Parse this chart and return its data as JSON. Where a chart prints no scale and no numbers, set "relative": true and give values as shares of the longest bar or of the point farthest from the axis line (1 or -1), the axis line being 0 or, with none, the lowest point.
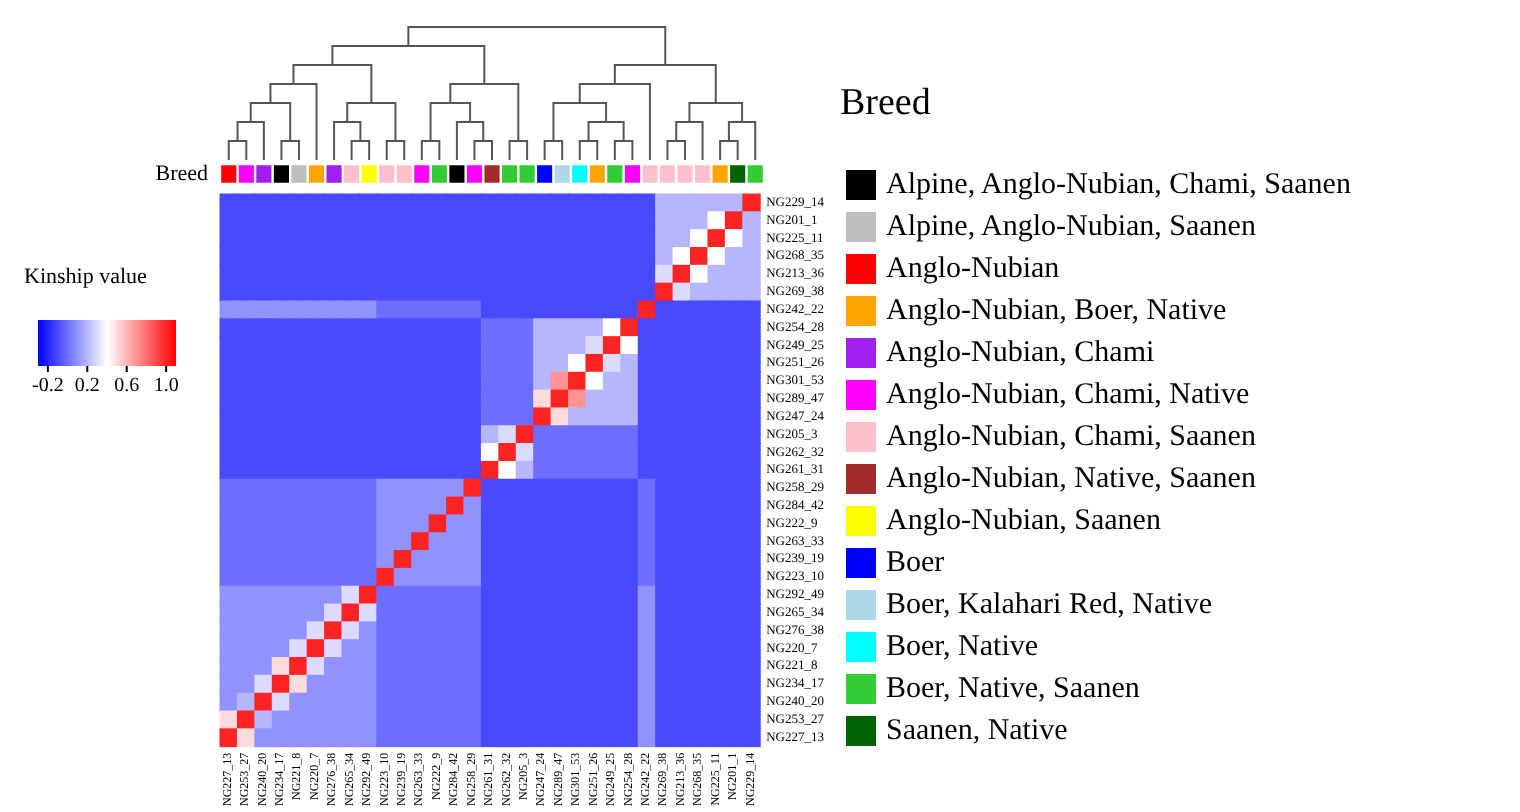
{
  "chart_data": [
    {
      "type": "bar",
      "ylabel": "Breed",
      "legend_title": "Breed",
      "legend": "right",
      "stacked": true,
      "relative": true,
      "categories": [
        null,
        null,
        null,
        null,
        null,
        null,
        null,
        null,
        null,
        null,
        null,
        null,
        null,
        null,
        null,
        null,
        null,
        null,
        null,
        null,
        null,
        null,
        null,
        null,
        null,
        null,
        null,
        null,
        null,
        null,
        null
      ],
      "series": [
        {
          "name": "Alpine, Anglo-Nubian, Chami, Saanen",
          "color": "#000000",
          "values": [
            null,
            null,
            null,
            1,
            null,
            null,
            null,
            null,
            null,
            null,
            null,
            null,
            null,
            1,
            null,
            null,
            null,
            null,
            null,
            null,
            null,
            null,
            null,
            null,
            null,
            null,
            null,
            null,
            null,
            null,
            null
          ]
        },
        {
          "name": "Alpine, Anglo-Nubian, Saanen",
          "color": "#bebebe",
          "values": [
            null,
            null,
            null,
            null,
            1,
            null,
            null,
            null,
            null,
            null,
            null,
            null,
            null,
            null,
            null,
            null,
            null,
            null,
            null,
            null,
            null,
            null,
            null,
            null,
            null,
            null,
            null,
            null,
            null,
            null,
            null
          ]
        },
        {
          "name": "Anglo-Nubian",
          "color": "#ff0000",
          "values": [
            1,
            null,
            null,
            null,
            null,
            null,
            null,
            null,
            null,
            null,
            null,
            null,
            null,
            null,
            null,
            null,
            null,
            null,
            null,
            null,
            null,
            null,
            null,
            null,
            null,
            null,
            null,
            null,
            null,
            null,
            null
          ]
        },
        {
          "name": "Anglo-Nubian, Boer, Native",
          "color": "#ffa500",
          "values": [
            null,
            null,
            null,
            null,
            null,
            1,
            null,
            null,
            null,
            null,
            null,
            null,
            null,
            null,
            null,
            null,
            null,
            null,
            null,
            null,
            null,
            1,
            null,
            null,
            null,
            null,
            null,
            null,
            1,
            null,
            null
          ]
        },
        {
          "name": "Anglo-Nubian, Chami",
          "color": "#a020f0",
          "values": [
            null,
            null,
            1,
            null,
            null,
            null,
            1,
            null,
            null,
            null,
            null,
            null,
            null,
            null,
            null,
            null,
            null,
            null,
            null,
            null,
            null,
            null,
            null,
            null,
            null,
            null,
            null,
            null,
            null,
            null,
            null
          ]
        },
        {
          "name": "Anglo-Nubian, Chami, Native",
          "color": "#ff00ff",
          "values": [
            null,
            1,
            null,
            null,
            null,
            null,
            null,
            null,
            null,
            null,
            null,
            1,
            null,
            null,
            1,
            null,
            null,
            null,
            null,
            null,
            null,
            null,
            null,
            1,
            null,
            null,
            null,
            null,
            null,
            null,
            null
          ]
        },
        {
          "name": "Anglo-Nubian, Chami, Saanen",
          "color": "#ffc0cb",
          "values": [
            null,
            null,
            null,
            null,
            null,
            null,
            null,
            1,
            null,
            1,
            1,
            null,
            null,
            null,
            null,
            null,
            null,
            null,
            null,
            null,
            null,
            null,
            null,
            null,
            1,
            1,
            1,
            1,
            null,
            null,
            null
          ]
        },
        {
          "name": "Anglo-Nubian, Native, Saanen",
          "color": "#a52a2a",
          "values": [
            null,
            null,
            null,
            null,
            null,
            null,
            null,
            null,
            null,
            null,
            null,
            null,
            null,
            null,
            null,
            1,
            null,
            null,
            null,
            null,
            null,
            null,
            null,
            null,
            null,
            null,
            null,
            null,
            null,
            null,
            null
          ]
        },
        {
          "name": "Anglo-Nubian, Saanen",
          "color": "#ffff00",
          "values": [
            null,
            null,
            null,
            null,
            null,
            null,
            null,
            null,
            1,
            null,
            null,
            null,
            null,
            null,
            null,
            null,
            null,
            null,
            null,
            null,
            null,
            null,
            null,
            null,
            null,
            null,
            null,
            null,
            null,
            null,
            null
          ]
        },
        {
          "name": "Boer",
          "color": "#0000ff",
          "values": [
            null,
            null,
            null,
            null,
            null,
            null,
            null,
            null,
            null,
            null,
            null,
            null,
            null,
            null,
            null,
            null,
            null,
            null,
            1,
            null,
            null,
            null,
            null,
            null,
            null,
            null,
            null,
            null,
            null,
            null,
            null
          ]
        },
        {
          "name": "Boer, Kalahari Red, Native",
          "color": "#add8e6",
          "values": [
            null,
            null,
            null,
            null,
            null,
            null,
            null,
            null,
            null,
            null,
            null,
            null,
            null,
            null,
            null,
            null,
            null,
            null,
            null,
            1,
            null,
            null,
            null,
            null,
            null,
            null,
            null,
            null,
            null,
            null,
            null
          ]
        },
        {
          "name": "Boer, Native",
          "color": "#00ffff",
          "values": [
            null,
            null,
            null,
            null,
            null,
            null,
            null,
            null,
            null,
            null,
            null,
            null,
            null,
            null,
            null,
            null,
            null,
            null,
            null,
            null,
            1,
            null,
            null,
            null,
            null,
            null,
            null,
            null,
            null,
            null,
            null
          ]
        },
        {
          "name": "Boer, Native, Saanen",
          "color": "#32cd32",
          "values": [
            null,
            null,
            null,
            null,
            null,
            null,
            null,
            null,
            null,
            null,
            null,
            null,
            1,
            null,
            null,
            null,
            1,
            1,
            null,
            null,
            null,
            null,
            1,
            null,
            null,
            null,
            null,
            null,
            null,
            null,
            1
          ]
        },
        {
          "name": "Saanen, Native",
          "color": "#006400",
          "values": [
            null,
            null,
            null,
            null,
            null,
            null,
            null,
            null,
            null,
            null,
            null,
            null,
            null,
            null,
            null,
            null,
            null,
            null,
            null,
            null,
            null,
            null,
            null,
            null,
            null,
            null,
            null,
            null,
            null,
            1,
            null
          ]
        }
      ]
    },
    {
      "type": "heatmap",
      "clabel": "Kinship value",
      "clim": [
        -0.3,
        1.1
      ],
      "cticks": [
        -0.2,
        0.2,
        0.6,
        {
          "value": 1,
          "label": "1.0"
        }
      ],
      "colors": [
        "#0000ff",
        "#ffffff",
        "#ff0000"
      ],
      "categories": [
        "NG227_13",
        "NG253_27",
        "NG240_20",
        "NG234_17",
        "NG221_8",
        "NG220_7",
        "NG276_38",
        "NG265_34",
        "NG292_49",
        "NG223_10",
        "NG239_19",
        "NG263_33",
        "NG222_9",
        "NG284_42",
        "NG258_29",
        "NG261_31",
        "NG262_32",
        "NG205_3",
        "NG247_24",
        "NG289_47",
        "NG301_53",
        "NG251_26",
        "NG249_25",
        "NG254_28",
        "NG242_22",
        "NG269_38",
        "NG213_36",
        "NG268_35",
        "NG225_11",
        "NG201_1",
        "NG229_14"
      ],
      "y_categories": [
        "NG229_14",
        "NG201_1",
        "NG225_11",
        "NG268_35",
        "NG213_36",
        "NG269_38",
        "NG242_22",
        "NG254_28",
        "NG249_25",
        "NG251_26",
        "NG301_53",
        "NG289_47",
        "NG247_24",
        "NG205_3",
        "NG262_32",
        "NG261_31",
        "NG258_29",
        "NG284_42",
        "NG222_9",
        "NG263_33",
        "NG239_19",
        "NG223_10",
        "NG292_49",
        "NG265_34",
        "NG276_38",
        "NG220_7",
        "NG221_8",
        "NG234_17",
        "NG240_20",
        "NG253_27",
        "NG227_13"
      ],
      "cells": [
        [
          -0.1,
          -0.1,
          -0.1,
          -0.1,
          -0.1,
          -0.1,
          -0.1,
          -0.1,
          -0.1,
          -0.1,
          -0.1,
          -0.1,
          -0.1,
          -0.1,
          -0.1,
          -0.1,
          -0.1,
          -0.1,
          -0.1,
          -0.1,
          -0.1,
          -0.1,
          -0.1,
          -0.1,
          -0.1,
          0.2,
          0.2,
          0.2,
          0.2,
          0.2,
          1.0
        ],
        [
          -0.1,
          -0.1,
          -0.1,
          -0.1,
          -0.1,
          -0.1,
          -0.1,
          -0.1,
          -0.1,
          -0.1,
          -0.1,
          -0.1,
          -0.1,
          -0.1,
          -0.1,
          -0.1,
          -0.1,
          -0.1,
          -0.1,
          -0.1,
          -0.1,
          -0.1,
          -0.1,
          -0.1,
          -0.1,
          0.2,
          0.2,
          0.2,
          0.4,
          1.0,
          0.2
        ],
        [
          -0.1,
          -0.1,
          -0.1,
          -0.1,
          -0.1,
          -0.1,
          -0.1,
          -0.1,
          -0.1,
          -0.1,
          -0.1,
          -0.1,
          -0.1,
          -0.1,
          -0.1,
          -0.1,
          -0.1,
          -0.1,
          -0.1,
          -0.1,
          -0.1,
          -0.1,
          -0.1,
          -0.1,
          -0.1,
          0.2,
          0.2,
          0.4,
          1.0,
          0.4,
          0.2
        ],
        [
          -0.1,
          -0.1,
          -0.1,
          -0.1,
          -0.1,
          -0.1,
          -0.1,
          -0.1,
          -0.1,
          -0.1,
          -0.1,
          -0.1,
          -0.1,
          -0.1,
          -0.1,
          -0.1,
          -0.1,
          -0.1,
          -0.1,
          -0.1,
          -0.1,
          -0.1,
          -0.1,
          -0.1,
          -0.1,
          0.2,
          0.4,
          1.0,
          0.4,
          0.2,
          0.2
        ],
        [
          -0.1,
          -0.1,
          -0.1,
          -0.1,
          -0.1,
          -0.1,
          -0.1,
          -0.1,
          -0.1,
          -0.1,
          -0.1,
          -0.1,
          -0.1,
          -0.1,
          -0.1,
          -0.1,
          -0.1,
          -0.1,
          -0.1,
          -0.1,
          -0.1,
          -0.1,
          -0.1,
          -0.1,
          -0.1,
          0.3,
          1.0,
          0.4,
          0.2,
          0.2,
          0.2
        ],
        [
          -0.1,
          -0.1,
          -0.1,
          -0.1,
          -0.1,
          -0.1,
          -0.1,
          -0.1,
          -0.1,
          -0.1,
          -0.1,
          -0.1,
          -0.1,
          -0.1,
          -0.1,
          -0.1,
          -0.1,
          -0.1,
          -0.1,
          -0.1,
          -0.1,
          -0.1,
          -0.1,
          -0.1,
          -0.1,
          1.0,
          0.3,
          0.2,
          0.2,
          0.2,
          0.2
        ],
        [
          0.1,
          0.1,
          0.1,
          0.1,
          0.1,
          0.1,
          0.1,
          0.1,
          0.1,
          0,
          0,
          0,
          0,
          0,
          0,
          -0.1,
          -0.1,
          -0.1,
          -0.1,
          -0.1,
          -0.1,
          -0.1,
          -0.1,
          -0.1,
          1.0,
          -0.1,
          -0.1,
          -0.1,
          -0.1,
          -0.1,
          -0.1
        ],
        [
          -0.1,
          -0.1,
          -0.1,
          -0.1,
          -0.1,
          -0.1,
          -0.1,
          -0.1,
          -0.1,
          -0.1,
          -0.1,
          -0.1,
          -0.1,
          -0.1,
          -0.1,
          0,
          0,
          0,
          0.2,
          0.2,
          0.2,
          0.2,
          0.4,
          1.0,
          -0.1,
          -0.1,
          -0.1,
          -0.1,
          -0.1,
          -0.1,
          -0.1
        ],
        [
          -0.1,
          -0.1,
          -0.1,
          -0.1,
          -0.1,
          -0.1,
          -0.1,
          -0.1,
          -0.1,
          -0.1,
          -0.1,
          -0.1,
          -0.1,
          -0.1,
          -0.1,
          0,
          0,
          0,
          0.2,
          0.2,
          0.2,
          0.3,
          1.0,
          0.4,
          -0.1,
          -0.1,
          -0.1,
          -0.1,
          -0.1,
          -0.1,
          -0.1
        ],
        [
          -0.1,
          -0.1,
          -0.1,
          -0.1,
          -0.1,
          -0.1,
          -0.1,
          -0.1,
          -0.1,
          -0.1,
          -0.1,
          -0.1,
          -0.1,
          -0.1,
          -0.1,
          0,
          0,
          0,
          0.2,
          0.2,
          0.4,
          1.0,
          0.3,
          0.2,
          -0.1,
          -0.1,
          -0.1,
          -0.1,
          -0.1,
          -0.1,
          -0.1
        ],
        [
          -0.1,
          -0.1,
          -0.1,
          -0.1,
          -0.1,
          -0.1,
          -0.1,
          -0.1,
          -0.1,
          -0.1,
          -0.1,
          -0.1,
          -0.1,
          -0.1,
          -0.1,
          0,
          0,
          0,
          0.2,
          0.7,
          1.0,
          0.4,
          0.2,
          0.2,
          -0.1,
          -0.1,
          -0.1,
          -0.1,
          -0.1,
          -0.1,
          -0.1
        ],
        [
          -0.1,
          -0.1,
          -0.1,
          -0.1,
          -0.1,
          -0.1,
          -0.1,
          -0.1,
          -0.1,
          -0.1,
          -0.1,
          -0.1,
          -0.1,
          -0.1,
          -0.1,
          0,
          0,
          0,
          0.5,
          1.0,
          0.7,
          0.2,
          0.2,
          0.2,
          -0.1,
          -0.1,
          -0.1,
          -0.1,
          -0.1,
          -0.1,
          -0.1
        ],
        [
          -0.1,
          -0.1,
          -0.1,
          -0.1,
          -0.1,
          -0.1,
          -0.1,
          -0.1,
          -0.1,
          -0.1,
          -0.1,
          -0.1,
          -0.1,
          -0.1,
          -0.1,
          0,
          0,
          0,
          1.0,
          0.5,
          0.2,
          0.2,
          0.2,
          0.2,
          -0.1,
          -0.1,
          -0.1,
          -0.1,
          -0.1,
          -0.1,
          -0.1
        ],
        [
          -0.1,
          -0.1,
          -0.1,
          -0.1,
          -0.1,
          -0.1,
          -0.1,
          -0.1,
          -0.1,
          -0.1,
          -0.1,
          -0.1,
          -0.1,
          -0.1,
          -0.1,
          0.2,
          0.3,
          1.0,
          0,
          0,
          0,
          0,
          0,
          0,
          -0.1,
          -0.1,
          -0.1,
          -0.1,
          -0.1,
          -0.1,
          -0.1
        ],
        [
          -0.1,
          -0.1,
          -0.1,
          -0.1,
          -0.1,
          -0.1,
          -0.1,
          -0.1,
          -0.1,
          -0.1,
          -0.1,
          -0.1,
          -0.1,
          -0.1,
          -0.1,
          0.4,
          1.0,
          0.3,
          0,
          0,
          0,
          0,
          0,
          0,
          -0.1,
          -0.1,
          -0.1,
          -0.1,
          -0.1,
          -0.1,
          -0.1
        ],
        [
          -0.1,
          -0.1,
          -0.1,
          -0.1,
          -0.1,
          -0.1,
          -0.1,
          -0.1,
          -0.1,
          -0.1,
          -0.1,
          -0.1,
          -0.1,
          -0.1,
          -0.1,
          1.0,
          0.4,
          0.2,
          0,
          0,
          0,
          0,
          0,
          0,
          -0.1,
          -0.1,
          -0.1,
          -0.1,
          -0.1,
          -0.1,
          -0.1
        ],
        [
          0,
          0,
          0,
          0,
          0,
          0,
          0,
          0,
          0,
          0.1,
          0.1,
          0.1,
          0.1,
          0.1,
          1.0,
          -0.1,
          -0.1,
          -0.1,
          -0.1,
          -0.1,
          -0.1,
          -0.1,
          -0.1,
          -0.1,
          0,
          -0.1,
          -0.1,
          -0.1,
          -0.1,
          -0.1,
          -0.1
        ],
        [
          0,
          0,
          0,
          0,
          0,
          0,
          0,
          0,
          0,
          0.1,
          0.1,
          0.1,
          0.1,
          1.0,
          0.1,
          -0.1,
          -0.1,
          -0.1,
          -0.1,
          -0.1,
          -0.1,
          -0.1,
          -0.1,
          -0.1,
          0,
          -0.1,
          -0.1,
          -0.1,
          -0.1,
          -0.1,
          -0.1
        ],
        [
          0,
          0,
          0,
          0,
          0,
          0,
          0,
          0,
          0,
          0.1,
          0.1,
          0.1,
          1.0,
          0.1,
          0.1,
          -0.1,
          -0.1,
          -0.1,
          -0.1,
          -0.1,
          -0.1,
          -0.1,
          -0.1,
          -0.1,
          0,
          -0.1,
          -0.1,
          -0.1,
          -0.1,
          -0.1,
          -0.1
        ],
        [
          0,
          0,
          0,
          0,
          0,
          0,
          0,
          0,
          0,
          0.1,
          0.1,
          1.0,
          0.1,
          0.1,
          0.1,
          -0.1,
          -0.1,
          -0.1,
          -0.1,
          -0.1,
          -0.1,
          -0.1,
          -0.1,
          -0.1,
          0,
          -0.1,
          -0.1,
          -0.1,
          -0.1,
          -0.1,
          -0.1
        ],
        [
          0,
          0,
          0,
          0,
          0,
          0,
          0,
          0,
          0,
          0.1,
          1.0,
          0.1,
          0.1,
          0.1,
          0.1,
          -0.1,
          -0.1,
          -0.1,
          -0.1,
          -0.1,
          -0.1,
          -0.1,
          -0.1,
          -0.1,
          0,
          -0.1,
          -0.1,
          -0.1,
          -0.1,
          -0.1,
          -0.1
        ],
        [
          0,
          0,
          0,
          0,
          0,
          0,
          0,
          0,
          0,
          1.0,
          0.1,
          0.1,
          0.1,
          0.1,
          0.1,
          -0.1,
          -0.1,
          -0.1,
          -0.1,
          -0.1,
          -0.1,
          -0.1,
          -0.1,
          -0.1,
          0,
          -0.1,
          -0.1,
          -0.1,
          -0.1,
          -0.1,
          -0.1
        ],
        [
          0.1,
          0.1,
          0.1,
          0.1,
          0.1,
          0.1,
          0.1,
          0.3,
          1.0,
          0,
          0,
          0,
          0,
          0,
          0,
          -0.1,
          -0.1,
          -0.1,
          -0.1,
          -0.1,
          -0.1,
          -0.1,
          -0.1,
          -0.1,
          0.1,
          -0.1,
          -0.1,
          -0.1,
          -0.1,
          -0.1,
          -0.1
        ],
        [
          0.1,
          0.1,
          0.1,
          0.1,
          0.1,
          0.1,
          0.3,
          1.0,
          0.3,
          0,
          0,
          0,
          0,
          0,
          0,
          -0.1,
          -0.1,
          -0.1,
          -0.1,
          -0.1,
          -0.1,
          -0.1,
          -0.1,
          -0.1,
          0.1,
          -0.1,
          -0.1,
          -0.1,
          -0.1,
          -0.1,
          -0.1
        ],
        [
          0.1,
          0.1,
          0.1,
          0.1,
          0.1,
          0.3,
          1.0,
          0.3,
          0.1,
          0,
          0,
          0,
          0,
          0,
          0,
          -0.1,
          -0.1,
          -0.1,
          -0.1,
          -0.1,
          -0.1,
          -0.1,
          -0.1,
          -0.1,
          0.1,
          -0.1,
          -0.1,
          -0.1,
          -0.1,
          -0.1,
          -0.1
        ],
        [
          0.1,
          0.1,
          0.1,
          0.1,
          0.3,
          1.0,
          0.3,
          0.1,
          0.1,
          0,
          0,
          0,
          0,
          0,
          0,
          -0.1,
          -0.1,
          -0.1,
          -0.1,
          -0.1,
          -0.1,
          -0.1,
          -0.1,
          -0.1,
          0.1,
          -0.1,
          -0.1,
          -0.1,
          -0.1,
          -0.1,
          -0.1
        ],
        [
          0.1,
          0.1,
          0.1,
          0.5,
          1.0,
          0.3,
          0.1,
          0.1,
          0.1,
          0,
          0,
          0,
          0,
          0,
          0,
          -0.1,
          -0.1,
          -0.1,
          -0.1,
          -0.1,
          -0.1,
          -0.1,
          -0.1,
          -0.1,
          0.1,
          -0.1,
          -0.1,
          -0.1,
          -0.1,
          -0.1,
          -0.1
        ],
        [
          0.1,
          0.1,
          0.3,
          1.0,
          0.5,
          0.1,
          0.1,
          0.1,
          0.1,
          0,
          0,
          0,
          0,
          0,
          0,
          -0.1,
          -0.1,
          -0.1,
          -0.1,
          -0.1,
          -0.1,
          -0.1,
          -0.1,
          -0.1,
          0.1,
          -0.1,
          -0.1,
          -0.1,
          -0.1,
          -0.1,
          -0.1
        ],
        [
          0.1,
          0.2,
          1.0,
          0.3,
          0.1,
          0.1,
          0.1,
          0.1,
          0.1,
          0,
          0,
          0,
          0,
          0,
          0,
          -0.1,
          -0.1,
          -0.1,
          -0.1,
          -0.1,
          -0.1,
          -0.1,
          -0.1,
          -0.1,
          0.1,
          -0.1,
          -0.1,
          -0.1,
          -0.1,
          -0.1,
          -0.1
        ],
        [
          0.5,
          1.0,
          0.2,
          0.1,
          0.1,
          0.1,
          0.1,
          0.1,
          0.1,
          0,
          0,
          0,
          0,
          0,
          0,
          -0.1,
          -0.1,
          -0.1,
          -0.1,
          -0.1,
          -0.1,
          -0.1,
          -0.1,
          -0.1,
          0.1,
          -0.1,
          -0.1,
          -0.1,
          -0.1,
          -0.1,
          -0.1
        ],
        [
          1.0,
          0.5,
          0.1,
          0.1,
          0.1,
          0.1,
          0.1,
          0.1,
          0.1,
          0,
          0,
          0,
          0,
          0,
          0,
          -0.1,
          -0.1,
          -0.1,
          -0.1,
          -0.1,
          -0.1,
          -0.1,
          -0.1,
          -0.1,
          0.1,
          -0.1,
          -0.1,
          -0.1,
          -0.1,
          -0.1,
          -0.1
        ]
      ]
    }
  ]
}
